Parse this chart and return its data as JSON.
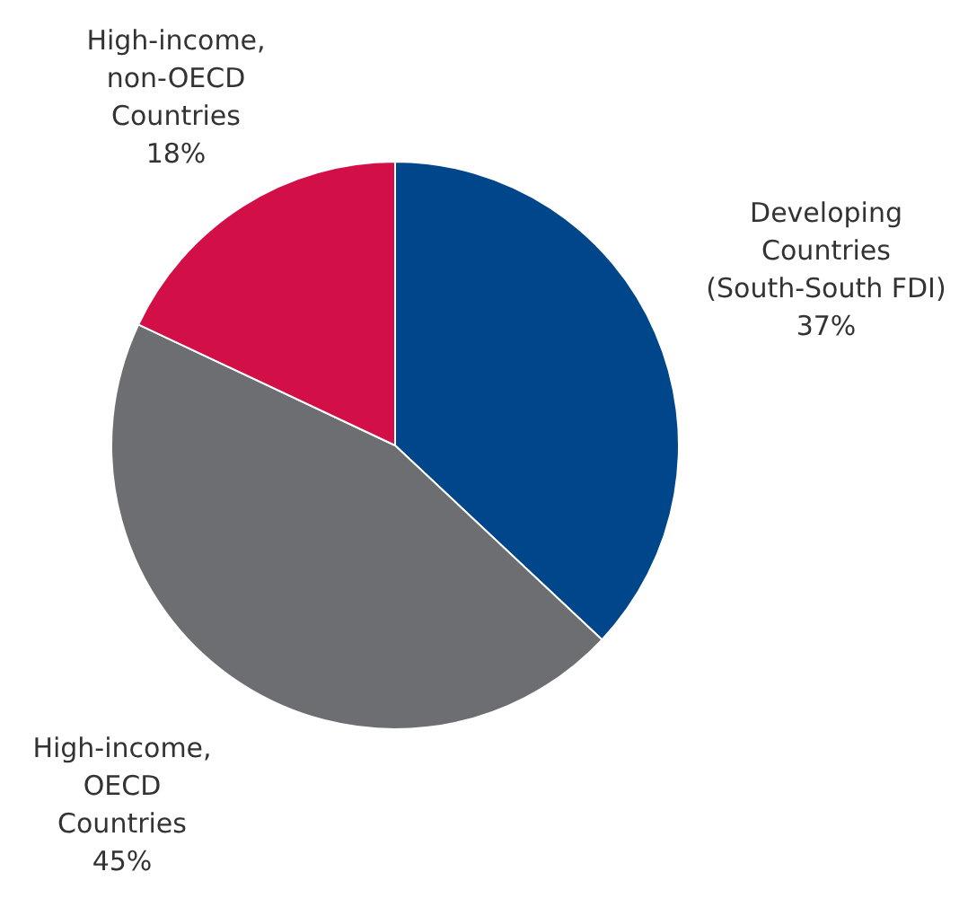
{
  "chart_data": {
    "type": "pie",
    "categories": [
      "Developing\nCountries\n(South-South FDI)",
      "High-income,\nOECD\nCountries",
      "High-income,\nnon-OECD\nCountries"
    ],
    "values": [
      37,
      45,
      18
    ],
    "colors": [
      "#00468b",
      "#6d6e71",
      "#d20f46"
    ],
    "value_labels": [
      "37%",
      "45%",
      "18%"
    ]
  }
}
